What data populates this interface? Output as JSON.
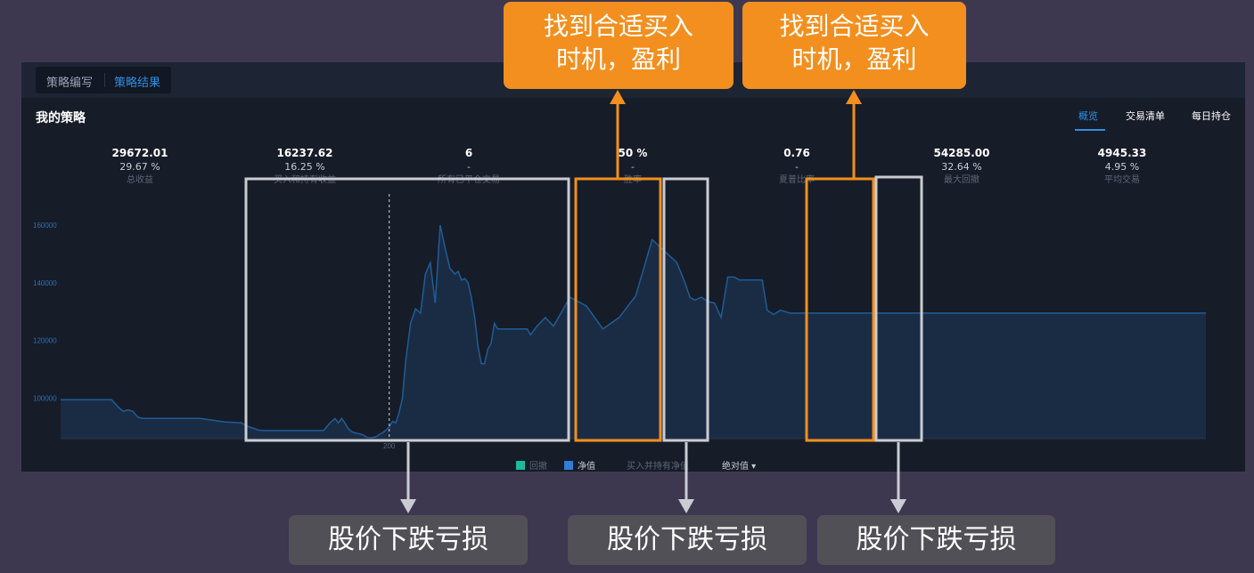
{
  "tabs": {
    "edit": "策略编写",
    "result": "策略结果"
  },
  "title": "我的策略",
  "right_tabs": {
    "overview": "概览",
    "trades": "交易清单",
    "daily": "每日持仓"
  },
  "stats": [
    {
      "value": "29672.01",
      "pct": "29.67 %",
      "label": "总收益"
    },
    {
      "value": "16237.62",
      "pct": "16.25 %",
      "label": "买入和持有收益"
    },
    {
      "value": "6",
      "pct": "-",
      "label": "所有已平仓交易"
    },
    {
      "value": "50 %",
      "pct": "-",
      "label": "胜率"
    },
    {
      "value": "0.76",
      "pct": "-",
      "label": "夏普比率"
    },
    {
      "value": "54285.00",
      "pct": "32.64 %",
      "label": "最大回撤"
    },
    {
      "value": "4945.33",
      "pct": "4.95 %",
      "label": "平均交易"
    }
  ],
  "legend": {
    "drawdown": "回撤",
    "equity": "净值",
    "buyhold": "买入并持有净值",
    "mode": "绝对值 ▾"
  },
  "callouts": [
    "找到合适买入\n时机，盈利",
    "找到合适买入\n时机，盈利"
  ],
  "loss_labels": [
    "股价下跌亏损",
    "股价下跌亏损",
    "股价下跌亏损"
  ],
  "colors": {
    "accent": "#2f8fe0",
    "callout": "#f28f1e",
    "drawdown": "#1abc9c",
    "equity": "#2f7ed8",
    "area": "#1a2c44",
    "line": "#1f5d96"
  },
  "chart_data": {
    "type": "area",
    "series": [
      {
        "name": "净值",
        "x": [
          0,
          31,
          35,
          38,
          41,
          44,
          47,
          50,
          55,
          60,
          70,
          85,
          100,
          110,
          115,
          118,
          120,
          123,
          126,
          129,
          133,
          137,
          140,
          143,
          146,
          150,
          155,
          160,
          164,
          167,
          169,
          171,
          173,
          175,
          177,
          179,
          181,
          183,
          185,
          187,
          189,
          191,
          193,
          194,
          196,
          198,
          200,
          202,
          204,
          206,
          208,
          210,
          213,
          216,
          219,
          222,
          225,
          228,
          231,
          234,
          237,
          240,
          242,
          244,
          246,
          248,
          250,
          252,
          254,
          256,
          258,
          260,
          262,
          264,
          266,
          268,
          270,
          272,
          274,
          276,
          278,
          280,
          282,
          284,
          286,
          290,
          295,
          300,
          310,
          320,
          330,
          340,
          350,
          360,
          375,
          380,
          383,
          386,
          390,
          394,
          398,
          402,
          406,
          410,
          413,
          415,
          418,
          421,
          424,
          427,
          430,
          434,
          438,
          444,
          450,
          456,
          462,
          470,
          480,
          490,
          500,
          510,
          520,
          530,
          540,
          550,
          560,
          570,
          580,
          590,
          600,
          610,
          620,
          630,
          640,
          650,
          660,
          670,
          680,
          690,
          697
        ],
        "y": [
          99500,
          99500,
          97000,
          95500,
          96000,
          95500,
          93500,
          93000,
          93000,
          93000,
          93000,
          93000,
          91800,
          91500,
          90000,
          89500,
          89000,
          88800,
          88800,
          88800,
          88800,
          88800,
          88800,
          88800,
          88800,
          88800,
          88800,
          88800,
          91500,
          93000,
          91500,
          93000,
          91500,
          89500,
          88500,
          88000,
          87800,
          87500,
          87000,
          86300,
          86300,
          86500,
          87000,
          87500,
          88000,
          89000,
          90000,
          92000,
          91500,
          95000,
          100000,
          113000,
          126000,
          131000,
          129500,
          143000,
          147000,
          133000,
          160000,
          152000,
          145000,
          143000,
          144000,
          141000,
          141500,
          140000,
          135000,
          128000,
          118000,
          112000,
          112000,
          117000,
          119000,
          126000,
          124000,
          124000,
          124000,
          124000,
          124000,
          124000,
          124000,
          124000,
          124000,
          124000,
          122000,
          125000,
          128000,
          125000,
          135000,
          132000,
          124000,
          128000,
          135500,
          155000,
          147000,
          140000,
          135000,
          134000,
          135000,
          133500,
          133000,
          128000,
          142000,
          142000,
          141000,
          141000,
          141000,
          141000,
          141000,
          141000,
          130500,
          129000,
          130500,
          129500,
          129500,
          129500,
          129500,
          129500,
          129500,
          129500,
          129500,
          129500,
          129500,
          129500,
          129500,
          129500,
          129500,
          129500,
          129500,
          129500,
          129500,
          129500,
          129500,
          129500,
          129500,
          129500,
          129500,
          129500,
          129500,
          129500,
          129500
        ]
      }
    ],
    "y_ticks": [
      "160000",
      "140000",
      "120000",
      "100000"
    ],
    "y_tick_values": [
      160000,
      140000,
      120000,
      100000
    ],
    "x_ticks": [
      "200"
    ],
    "x_tick_values": [
      200
    ],
    "ylim": [
      86000,
      164000
    ],
    "xlim": [
      0,
      697
    ],
    "marker_x": 200,
    "grid": false
  }
}
